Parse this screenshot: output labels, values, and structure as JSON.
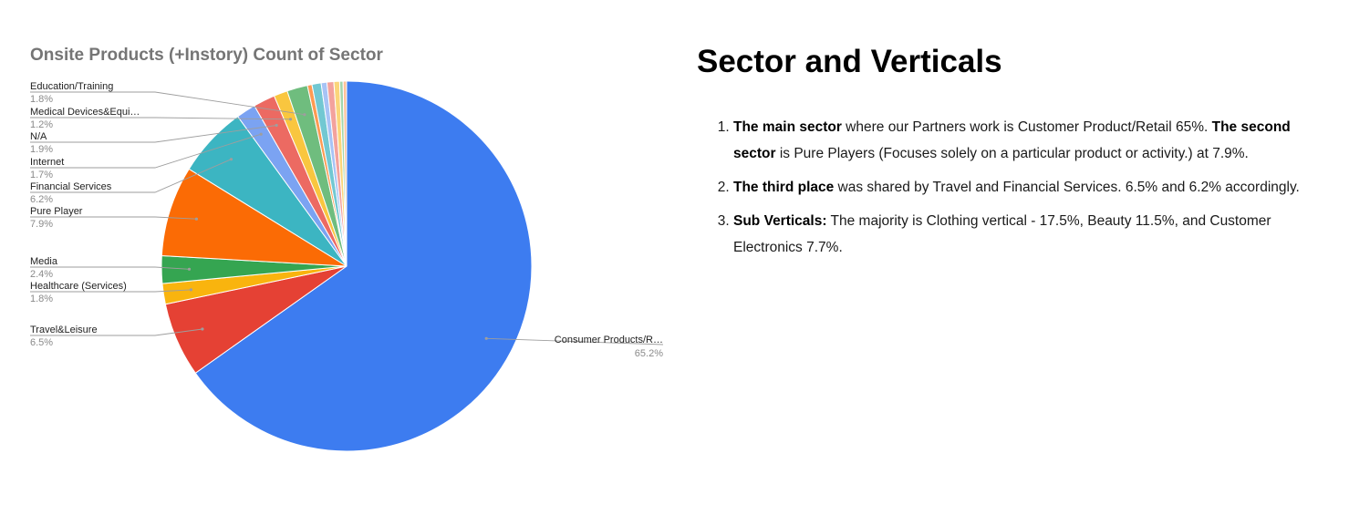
{
  "chart_data": {
    "type": "pie",
    "title": "Onsite Products (+Instory) Count of Sector",
    "slices": [
      {
        "label": "Consumer Products/R…",
        "value": 65.2,
        "value_label": "65.2%",
        "color": "#3d7cf0",
        "labeled": true
      },
      {
        "label": "Travel&Leisure",
        "value": 6.5,
        "value_label": "6.5%",
        "color": "#e54134",
        "labeled": true
      },
      {
        "label": "Healthcare (Services)",
        "value": 1.8,
        "value_label": "1.8%",
        "color": "#f9b40e",
        "labeled": true
      },
      {
        "label": "Media",
        "value": 2.4,
        "value_label": "2.4%",
        "color": "#35a551",
        "labeled": true
      },
      {
        "label": "Pure Player",
        "value": 7.9,
        "value_label": "7.9%",
        "color": "#fb6b05",
        "labeled": true
      },
      {
        "label": "Financial Services",
        "value": 6.2,
        "value_label": "6.2%",
        "color": "#3cb5c2",
        "labeled": true
      },
      {
        "label": "Internet",
        "value": 1.7,
        "value_label": "1.7%",
        "color": "#7ba3f2",
        "labeled": true
      },
      {
        "label": "N/A",
        "value": 1.9,
        "value_label": "1.9%",
        "color": "#ec6a62",
        "labeled": true
      },
      {
        "label": "Medical Devices&Equi…",
        "value": 1.2,
        "value_label": "1.2%",
        "color": "#f9c63f",
        "labeled": true
      },
      {
        "label": "Education/Training",
        "value": 1.8,
        "value_label": "1.8%",
        "color": "#6fbd7e",
        "labeled": true
      },
      {
        "label": "",
        "value": 0.4,
        "color": "#ff9a52",
        "labeled": false
      },
      {
        "label": "",
        "value": 0.8,
        "color": "#72c8d2",
        "labeled": false
      },
      {
        "label": "",
        "value": 0.5,
        "color": "#a7c3f5",
        "labeled": false
      },
      {
        "label": "",
        "value": 0.6,
        "color": "#f3a29d",
        "labeled": false
      },
      {
        "label": "",
        "value": 0.5,
        "color": "#fbd57a",
        "labeled": false
      },
      {
        "label": "",
        "value": 0.3,
        "color": "#a3d6ad",
        "labeled": false
      },
      {
        "label": "",
        "value": 0.3,
        "color": "#ffc29a",
        "labeled": false
      }
    ]
  },
  "text": {
    "heading": "Sector and Verticals",
    "points": [
      {
        "parts": [
          {
            "bold": true,
            "text": "The main sector"
          },
          {
            "bold": false,
            "text": " where our Partners work is Customer Product/Retail 65%. "
          },
          {
            "bold": true,
            "text": "The second sector"
          },
          {
            "bold": false,
            "text": " is Pure Players (Focuses solely on a particular product or activity.) at 7.9%."
          }
        ]
      },
      {
        "parts": [
          {
            "bold": true,
            "text": "The third place"
          },
          {
            "bold": false,
            "text": " was shared by Travel and Financial Services. 6.5% and 6.2% accordingly."
          }
        ]
      },
      {
        "parts": [
          {
            "bold": true,
            "text": "Sub Verticals:"
          },
          {
            "bold": false,
            "text": " The majority is Clothing vertical - 17.5%, Beauty 11.5%, and Customer Electronics 7.7%."
          }
        ]
      }
    ]
  }
}
